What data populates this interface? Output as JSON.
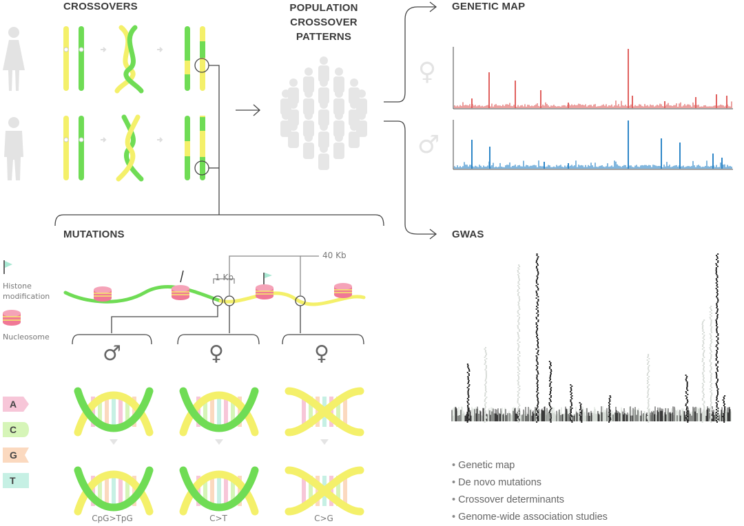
{
  "headings": {
    "crossovers": "CROSSOVERS",
    "population": [
      "POPULATION",
      "CROSSOVER",
      "PATTERNS"
    ],
    "genetic_map": "GENETIC MAP",
    "mutations": "MUTATIONS",
    "gwas": "GWAS"
  },
  "legend": {
    "histone": [
      "Histone",
      "modification"
    ],
    "nucleosome": "Nucleosome"
  },
  "distances": {
    "short": "1 Kb",
    "long": "40 Kb"
  },
  "sex_symbols": {
    "female": "♀",
    "male": "♂"
  },
  "mutation_groups": [
    {
      "sex": "♂",
      "type": "CpG>TpG"
    },
    {
      "sex": "♀",
      "type": "C>T"
    },
    {
      "sex": "♀",
      "type": "C>G"
    }
  ],
  "bases": [
    {
      "letter": "A",
      "color": "#f7c6d8"
    },
    {
      "letter": "C",
      "color": "#d6f5b8"
    },
    {
      "letter": "G",
      "color": "#fbd9bf"
    },
    {
      "letter": "T",
      "color": "#c6f0e4"
    }
  ],
  "colors": {
    "green": "#6fdc55",
    "yellow": "#f4f06a",
    "female_map": "#e0605e",
    "male_map": "#2d86c8",
    "nucleosome": "#f07896"
  },
  "icons": [
    "woman-icon",
    "man-icon",
    "crowd-icon",
    "arrow-icon",
    "flag-icon",
    "nucleosome-icon",
    "dna-helix-icon"
  ],
  "summary": [
    "Genetic map",
    "De novo mutations",
    "Crossover determinants",
    "Genome-wide association studies"
  ]
}
